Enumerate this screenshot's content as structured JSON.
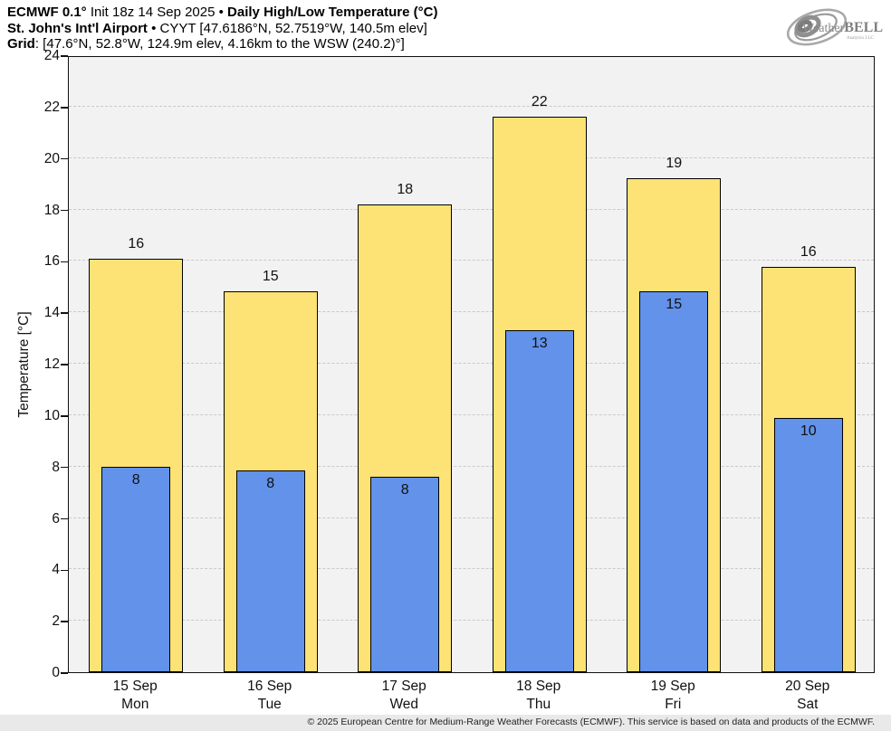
{
  "header": {
    "line1": {
      "seg1": "ECMWF 0.1°",
      "seg2": " Init 18z 14 Sep 2025 • ",
      "seg3": "Daily High/Low Temperature (°C)"
    },
    "line2": {
      "seg1": "St. John's Int'l Airport",
      "seg2": " • CYYT [47.6186°N, 52.7519°W, 140.5m elev]"
    },
    "line3": {
      "seg1": "Grid",
      "seg2": ": [47.6°N, 52.8°W, 124.9m elev, 4.16km to the WSW (240.2)°]"
    }
  },
  "logo": {
    "brand_prefix": "Weather",
    "brand_suffix": "BELL",
    "sub": "Analytics LLC"
  },
  "chart_data": {
    "type": "bar",
    "title": "ECMWF 0.1° Init 18z 14 Sep 2025 • Daily High/Low Temperature (°C)",
    "location": "St. John's Int'l Airport • CYYT [47.6186°N, 52.7519°W, 140.5m elev]",
    "grid_point": "[47.6°N, 52.8°W, 124.9m elev, 4.16km to the WSW (240.2)°]",
    "ylabel": "Temperature [°C]",
    "ylim": [
      0,
      24
    ],
    "ytick_step": 2,
    "grid_on": true,
    "plot_bg": "#F2F2F2",
    "gridline_color": "#C9C9C9",
    "categories": [
      {
        "date": "15 Sep",
        "day": "Mon"
      },
      {
        "date": "16 Sep",
        "day": "Tue"
      },
      {
        "date": "17 Sep",
        "day": "Wed"
      },
      {
        "date": "18 Sep",
        "day": "Thu"
      },
      {
        "date": "19 Sep",
        "day": "Fri"
      },
      {
        "date": "20 Sep",
        "day": "Sat"
      }
    ],
    "series": [
      {
        "name": "Daily High",
        "color": "#FDE275",
        "border_color": "#000000",
        "width_frac": 0.7,
        "values": [
          16.1,
          14.8,
          18.2,
          21.6,
          19.2,
          15.75
        ],
        "labels": [
          "16",
          "15",
          "18",
          "22",
          "19",
          "16"
        ],
        "label_position": "above"
      },
      {
        "name": "Daily Low",
        "color": "#6292E9",
        "border_color": "#000000",
        "width_frac": 0.51,
        "values": [
          8.0,
          7.85,
          7.6,
          13.3,
          14.8,
          9.9
        ],
        "labels": [
          "8",
          "8",
          "8",
          "13",
          "15",
          "10"
        ],
        "label_position": "inside-top"
      }
    ]
  },
  "footer": {
    "copyright": "© 2025 European Centre for Medium-Range Weather Forecasts (ECMWF). This service is based on data and products of the ECMWF."
  }
}
